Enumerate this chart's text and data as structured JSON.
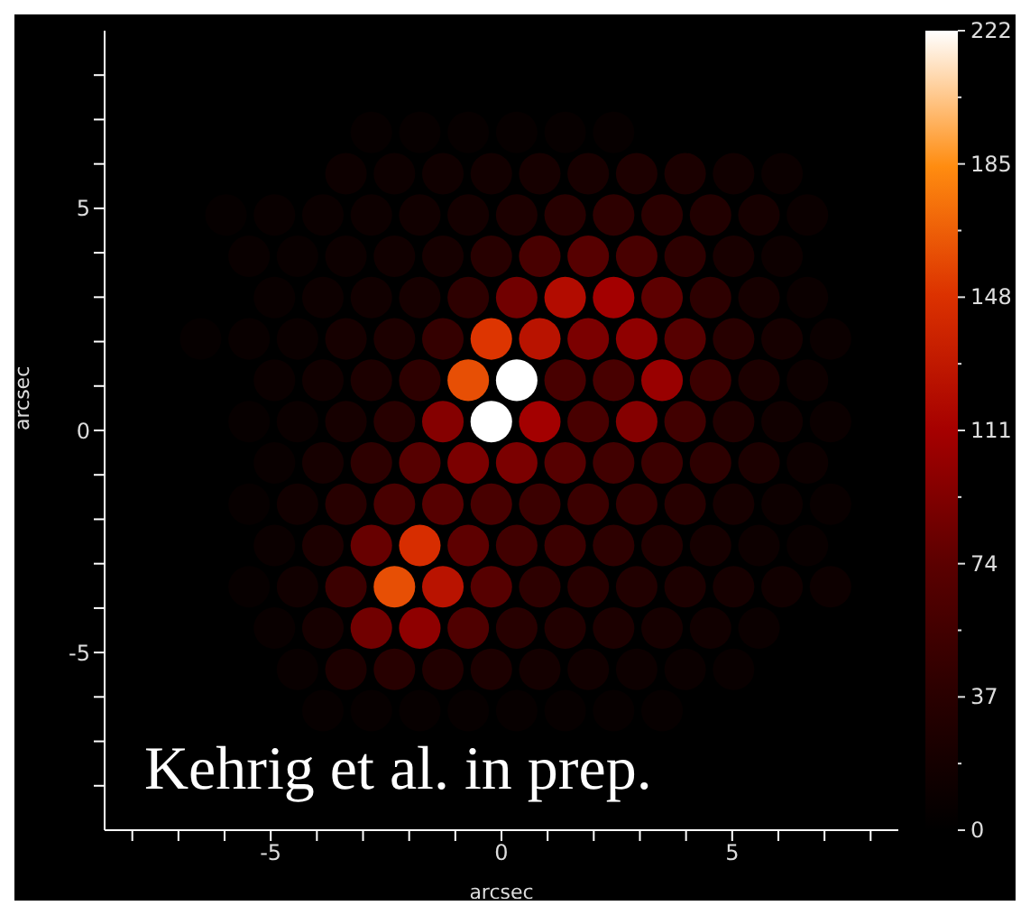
{
  "chart_data": {
    "type": "scatter",
    "xlabel": "arcsec",
    "ylabel": "arcsec",
    "marker": "circle",
    "grid": false,
    "xlim": [
      -8.6,
      8.6
    ],
    "ylim": [
      -9,
      9
    ],
    "xticks": [
      {
        "value": -8,
        "label": null
      },
      {
        "value": -7,
        "label": null
      },
      {
        "value": -6,
        "label": null
      },
      -5,
      {
        "value": -4,
        "label": null
      },
      {
        "value": -3,
        "label": null
      },
      {
        "value": -2,
        "label": null
      },
      {
        "value": -1,
        "label": null
      },
      0,
      {
        "value": 1,
        "label": null
      },
      {
        "value": 2,
        "label": null
      },
      {
        "value": 3,
        "label": null
      },
      {
        "value": 4,
        "label": null
      },
      5,
      {
        "value": 6,
        "label": null
      },
      {
        "value": 7,
        "label": null
      },
      {
        "value": 8,
        "label": null
      }
    ],
    "yticks": [
      {
        "value": -8,
        "label": null
      },
      {
        "value": -7,
        "label": null
      },
      {
        "value": -6,
        "label": null
      },
      -5,
      {
        "value": -4,
        "label": null
      },
      {
        "value": -3,
        "label": null
      },
      {
        "value": -2,
        "label": null
      },
      {
        "value": -1,
        "label": null
      },
      0,
      {
        "value": 1,
        "label": null
      },
      {
        "value": 2,
        "label": null
      },
      {
        "value": 3,
        "label": null
      },
      {
        "value": 4,
        "label": null
      },
      5,
      {
        "value": 6,
        "label": null
      },
      {
        "value": 7,
        "label": null
      },
      {
        "value": 8,
        "label": null
      }
    ],
    "clim": [
      0,
      222
    ],
    "cticks": [
      0,
      {
        "value": 18.5,
        "label": null
      },
      37,
      {
        "value": 55.5,
        "label": null
      },
      74,
      {
        "value": 92.5,
        "label": null
      },
      111,
      {
        "value": 129.5,
        "label": null
      },
      148,
      {
        "value": 166.5,
        "label": null
      },
      185,
      {
        "value": 203.5,
        "label": null
      },
      222
    ],
    "annotations": [
      "Kehrig et al. in prep."
    ],
    "x": [
      -2.82,
      -1.77,
      -0.72,
      0.33,
      1.38,
      2.43,
      -3.37,
      -2.32,
      -1.27,
      -0.22,
      0.83,
      1.88,
      2.93,
      3.98,
      5.03,
      6.08,
      -5.97,
      -4.92,
      -3.87,
      -2.82,
      -1.77,
      -0.72,
      0.33,
      1.38,
      2.43,
      3.48,
      4.53,
      5.58,
      6.63,
      -5.47,
      -4.42,
      -3.37,
      -2.32,
      -1.27,
      -0.22,
      0.83,
      1.88,
      2.93,
      3.98,
      5.03,
      6.08,
      -4.92,
      -3.87,
      -2.82,
      -1.77,
      -0.72,
      0.33,
      1.38,
      2.43,
      3.48,
      4.53,
      5.58,
      6.63,
      -6.52,
      -5.47,
      -4.42,
      -3.37,
      -2.32,
      -1.27,
      -0.22,
      0.83,
      1.88,
      2.93,
      3.98,
      5.03,
      6.08,
      7.13,
      -4.92,
      -3.87,
      -2.82,
      -1.77,
      -0.72,
      0.33,
      1.38,
      2.43,
      3.48,
      4.53,
      5.58,
      6.63,
      -5.47,
      -4.42,
      -3.37,
      -2.32,
      -1.27,
      -0.22,
      0.83,
      1.88,
      2.93,
      3.98,
      5.03,
      6.08,
      7.13,
      -4.92,
      -3.87,
      -2.82,
      -1.77,
      -0.72,
      0.33,
      1.38,
      2.43,
      3.48,
      4.53,
      5.58,
      6.63,
      -5.47,
      -4.42,
      -3.37,
      -2.32,
      -1.27,
      -0.22,
      0.83,
      1.88,
      2.93,
      3.98,
      5.03,
      6.08,
      7.13,
      -4.92,
      -3.87,
      -2.82,
      -1.77,
      -0.72,
      0.33,
      1.38,
      2.43,
      3.48,
      4.53,
      5.58,
      6.63,
      -5.47,
      -4.42,
      -3.37,
      -2.32,
      -1.27,
      -0.22,
      0.83,
      1.88,
      2.93,
      3.98,
      5.03,
      6.08,
      7.13,
      -4.92,
      -3.87,
      -2.82,
      -1.77,
      -0.72,
      0.33,
      1.38,
      2.43,
      3.48,
      4.53,
      5.58,
      -4.42,
      -3.37,
      -2.32,
      -1.27,
      -0.22,
      0.83,
      1.88,
      2.93,
      3.98,
      5.03,
      -3.87,
      -2.82,
      -1.77,
      -0.72,
      0.33,
      1.38,
      2.43,
      3.48
    ],
    "values": [
      6.71,
      6.71,
      6.71,
      6.71,
      6.71,
      6.71,
      5.78,
      5.78,
      5.78,
      5.78,
      5.78,
      5.78,
      5.78,
      5.78,
      5.78,
      5.78,
      4.85,
      4.85,
      4.85,
      4.85,
      4.85,
      4.85,
      4.85,
      4.85,
      4.85,
      4.85,
      4.85,
      4.85,
      4.85,
      3.92,
      3.92,
      3.92,
      3.92,
      3.92,
      3.92,
      3.92,
      3.92,
      3.92,
      3.92,
      3.92,
      3.92,
      2.99,
      2.99,
      2.99,
      2.99,
      2.99,
      2.99,
      2.99,
      2.99,
      2.99,
      2.99,
      2.99,
      2.99,
      2.06,
      2.06,
      2.06,
      2.06,
      2.06,
      2.06,
      2.06,
      2.06,
      2.06,
      2.06,
      2.06,
      2.06,
      2.06,
      2.06,
      1.13,
      1.13,
      1.13,
      1.13,
      1.13,
      1.13,
      1.13,
      1.13,
      1.13,
      1.13,
      1.13,
      1.13,
      0.2,
      0.2,
      0.2,
      0.2,
      0.2,
      0.2,
      0.2,
      0.2,
      0.2,
      0.2,
      0.2,
      0.2,
      0.2,
      -0.73,
      -0.73,
      -0.73,
      -0.73,
      -0.73,
      -0.73,
      -0.73,
      -0.73,
      -0.73,
      -0.73,
      -0.73,
      -0.73,
      -1.66,
      -1.66,
      -1.66,
      -1.66,
      -1.66,
      -1.66,
      -1.66,
      -1.66,
      -1.66,
      -1.66,
      -1.66,
      -1.66,
      -1.66,
      -2.59,
      -2.59,
      -2.59,
      -2.59,
      -2.59,
      -2.59,
      -2.59,
      -2.59,
      -2.59,
      -2.59,
      -2.59,
      -2.59,
      -3.52,
      -3.52,
      -3.52,
      -3.52,
      -3.52,
      -3.52,
      -3.52,
      -3.52,
      -3.52,
      -3.52,
      -3.52,
      -3.52,
      -3.52,
      -4.45,
      -4.45,
      -4.45,
      -4.45,
      -4.45,
      -4.45,
      -4.45,
      -4.45,
      -4.45,
      -4.45,
      -4.45,
      -5.38,
      -5.38,
      -5.38,
      -5.38,
      -5.38,
      -5.38,
      -5.38,
      -5.38,
      -5.38,
      -5.38,
      -6.31,
      -6.31,
      -6.31,
      -6.31,
      -6.31,
      -6.31,
      -6.31,
      -6.31
    ],
    "cvalues": [
      6,
      6,
      6,
      6,
      6,
      6,
      12,
      12,
      14,
      16,
      20,
      22,
      26,
      24,
      15,
      10,
      5,
      8,
      10,
      12,
      15,
      18,
      25,
      35,
      40,
      38,
      30,
      20,
      10,
      8,
      8,
      12,
      15,
      20,
      35,
      60,
      70,
      60,
      40,
      22,
      12,
      8,
      12,
      15,
      20,
      40,
      85,
      120,
      110,
      75,
      40,
      20,
      10,
      5,
      8,
      10,
      20,
      25,
      45,
      150,
      125,
      90,
      100,
      70,
      35,
      20,
      10,
      10,
      15,
      25,
      40,
      160,
      222,
      60,
      60,
      105,
      50,
      25,
      12,
      6,
      10,
      20,
      35,
      95,
      222,
      110,
      60,
      95,
      55,
      30,
      15,
      10,
      8,
      20,
      40,
      70,
      90,
      90,
      70,
      55,
      50,
      40,
      25,
      12,
      6,
      15,
      35,
      60,
      70,
      60,
      50,
      50,
      45,
      35,
      20,
      12,
      8,
      10,
      25,
      80,
      145,
      75,
      55,
      50,
      40,
      30,
      20,
      12,
      8,
      6,
      15,
      50,
      160,
      125,
      70,
      40,
      35,
      30,
      25,
      20,
      15,
      12,
      8,
      20,
      85,
      100,
      65,
      35,
      30,
      25,
      20,
      15,
      10,
      8,
      25,
      35,
      30,
      25,
      18,
      15,
      12,
      10,
      8,
      6,
      6,
      6,
      6,
      6,
      6,
      6,
      6
    ]
  }
}
